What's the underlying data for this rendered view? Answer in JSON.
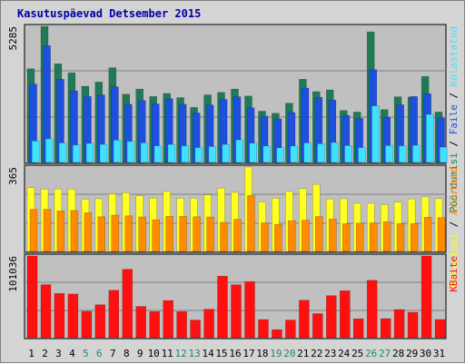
{
  "title": "Kasutuspäevad Detsember 2015",
  "colors": {
    "background": "#d4d4d4",
    "plot_background": "#c0c0c0",
    "title": "#0000aa",
    "visits": "#1f7a55",
    "pages": "#1e50e0",
    "hits": "#40e0ff",
    "files": "#ffff20",
    "hosts": "#ff8c00",
    "kbytes": "#ff1010",
    "weekend_label": "#1f8a6a",
    "weekday_label": "#000000"
  },
  "chart_data": [
    {
      "type": "bar",
      "panel": "top",
      "ymax_label": "5285",
      "ylim": [
        0,
        5285
      ],
      "categories": [
        "1",
        "2",
        "3",
        "4",
        "5",
        "6",
        "7",
        "8",
        "9",
        "10",
        "11",
        "12",
        "13",
        "14",
        "15",
        "16",
        "17",
        "18",
        "19",
        "20",
        "21",
        "22",
        "23",
        "24",
        "25",
        "26",
        "27",
        "28",
        "29",
        "30",
        "31"
      ],
      "weekend_days": [
        "5",
        "6",
        "12",
        "13",
        "19",
        "20",
        "26",
        "27"
      ],
      "right_label_parts": [
        {
          "text": "Pöördumisi",
          "color": "#1f7a55"
        },
        {
          "text": " / ",
          "color": "#000000"
        },
        {
          "text": "Faile",
          "color": "#1e50e0"
        },
        {
          "text": " / ",
          "color": "#000000"
        },
        {
          "text": "Külastatud",
          "color": "#40e0ff"
        }
      ],
      "series": [
        {
          "name": "Pöördumisi",
          "color": "#1f7a55",
          "values": [
            3640,
            5285,
            3830,
            3480,
            2960,
            3120,
            3680,
            2650,
            2850,
            2560,
            2680,
            2520,
            2140,
            2620,
            2720,
            2850,
            2580,
            1990,
            1910,
            2300,
            3230,
            2750,
            2820,
            2020,
            1960,
            5070,
            2050,
            2550,
            2540,
            3340,
            1960
          ]
        },
        {
          "name": "Faile",
          "color": "#1e50e0",
          "values": [
            3040,
            4530,
            3230,
            2780,
            2560,
            2620,
            2940,
            2260,
            2410,
            2270,
            2480,
            2260,
            1920,
            2230,
            2450,
            2550,
            2120,
            1800,
            1690,
            1940,
            2890,
            2530,
            2420,
            1830,
            1710,
            3600,
            1750,
            2240,
            2560,
            2670,
            1730
          ]
        },
        {
          "name": "Külastatud",
          "color": "#40e0ff",
          "values": [
            840,
            920,
            760,
            680,
            740,
            700,
            870,
            820,
            760,
            650,
            700,
            650,
            580,
            620,
            700,
            880,
            750,
            640,
            570,
            640,
            760,
            730,
            780,
            660,
            580,
            2200,
            660,
            650,
            670,
            1870,
            600
          ]
        }
      ]
    },
    {
      "type": "bar",
      "panel": "middle",
      "ymax_label": "365",
      "ylim": [
        0,
        365
      ],
      "categories": [
        "1",
        "2",
        "3",
        "4",
        "5",
        "6",
        "7",
        "8",
        "9",
        "10",
        "11",
        "12",
        "13",
        "14",
        "15",
        "16",
        "17",
        "18",
        "19",
        "20",
        "21",
        "22",
        "23",
        "24",
        "25",
        "26",
        "27",
        "28",
        "29",
        "30",
        "31"
      ],
      "right_label_parts": [
        {
          "text": "Külastusi",
          "color": "#ffff20"
        },
        {
          "text": " / ",
          "color": "#000000"
        },
        {
          "text": "Arvuteid",
          "color": "#ff8c00"
        }
      ],
      "series": [
        {
          "name": "Külastusi",
          "color": "#ffff20",
          "values": [
            276,
            270,
            270,
            270,
            226,
            228,
            248,
            254,
            240,
            230,
            260,
            230,
            230,
            245,
            274,
            255,
            365,
            214,
            230,
            260,
            272,
            290,
            227,
            228,
            208,
            208,
            202,
            213,
            227,
            236,
            229
          ]
        },
        {
          "name": "Arvuteid",
          "color": "#ff8c00",
          "values": [
            182,
            182,
            175,
            177,
            167,
            150,
            157,
            154,
            149,
            137,
            152,
            152,
            150,
            149,
            126,
            139,
            242,
            124,
            117,
            133,
            135,
            151,
            140,
            120,
            122,
            124,
            128,
            120,
            120,
            148,
            146
          ]
        }
      ]
    },
    {
      "type": "bar",
      "panel": "bottom",
      "ymax_label": "101036",
      "ylim": [
        0,
        101036
      ],
      "categories": [
        "1",
        "2",
        "3",
        "4",
        "5",
        "6",
        "7",
        "8",
        "9",
        "10",
        "11",
        "12",
        "13",
        "14",
        "15",
        "16",
        "17",
        "18",
        "19",
        "20",
        "21",
        "22",
        "23",
        "24",
        "25",
        "26",
        "27",
        "28",
        "29",
        "30",
        "31"
      ],
      "right_label_parts": [
        {
          "text": "KBaite",
          "color": "#ff1010"
        }
      ],
      "series": [
        {
          "name": "KBaite",
          "color": "#ff1010",
          "values": [
            101036,
            65600,
            54700,
            54000,
            32600,
            40800,
            58600,
            84500,
            38600,
            32300,
            46000,
            32200,
            21800,
            35300,
            76100,
            65500,
            69400,
            22400,
            9900,
            21800,
            46200,
            29700,
            52000,
            58000,
            23300,
            70900,
            23600,
            34800,
            31400,
            101036,
            22500
          ]
        }
      ]
    }
  ]
}
